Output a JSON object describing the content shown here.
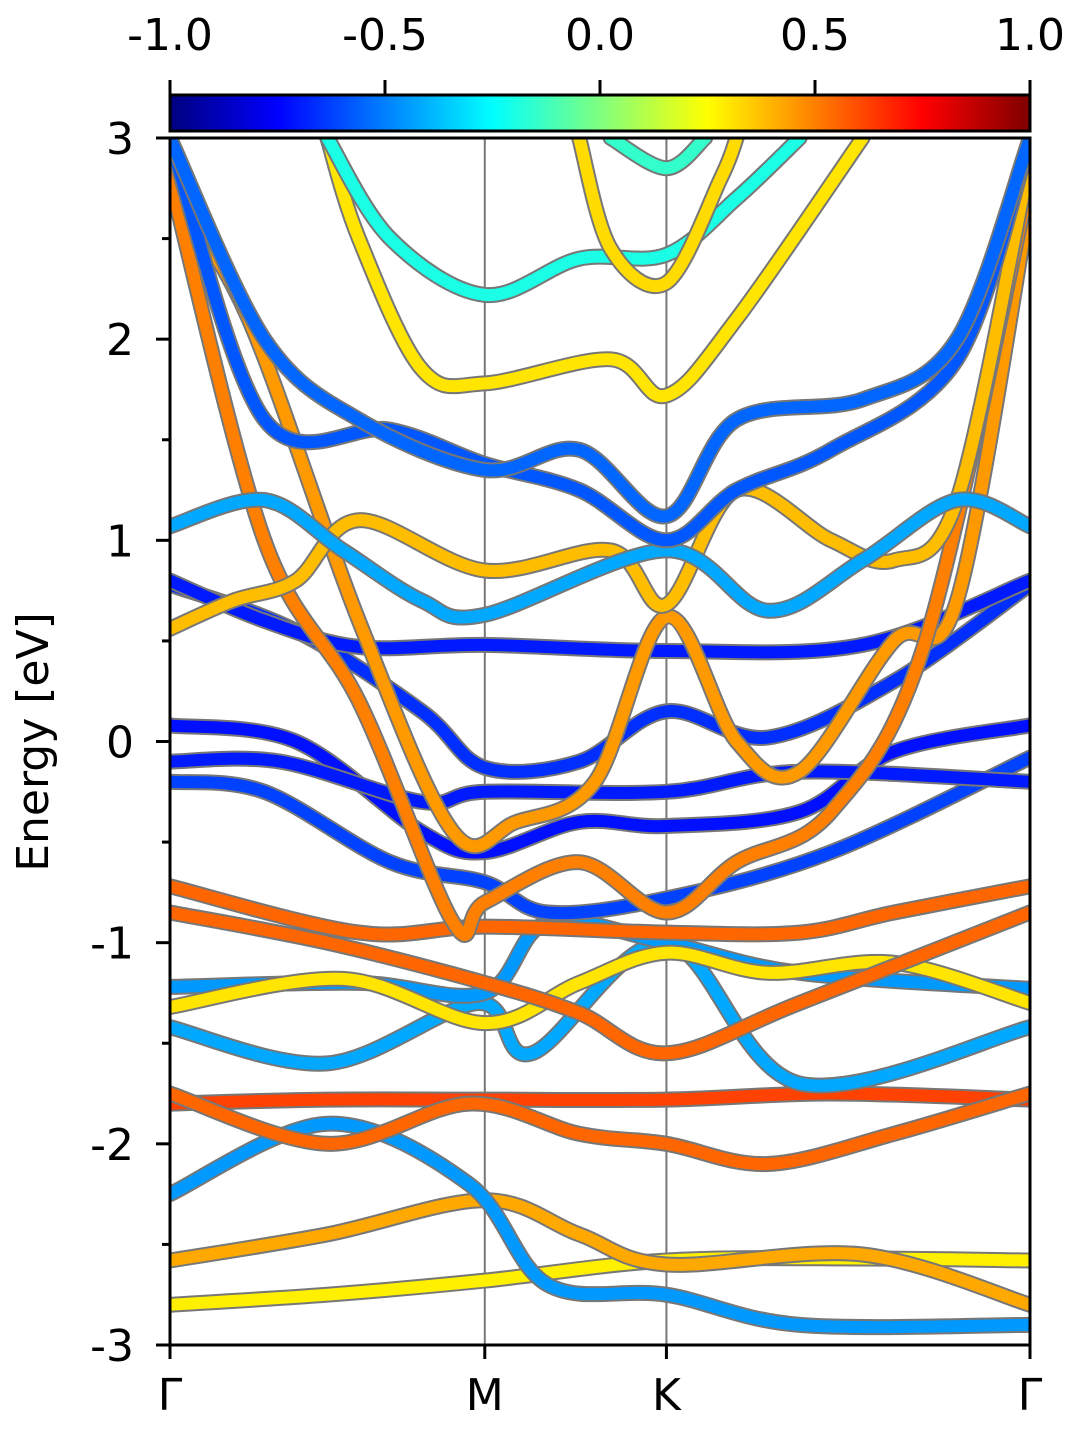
{
  "chart_data": {
    "type": "line",
    "title": "",
    "xlabel": "",
    "ylabel": "Energy [eV]",
    "ylim": [
      -3,
      3
    ],
    "y_ticks": [
      {
        "value": 3,
        "label": "3"
      },
      {
        "value": 2,
        "label": "2"
      },
      {
        "value": 1,
        "label": "1"
      },
      {
        "value": 0,
        "label": "0"
      },
      {
        "value": -1,
        "label": "-1"
      },
      {
        "value": -2,
        "label": "-2"
      },
      {
        "value": -3,
        "label": "-3"
      }
    ],
    "y_minor_ticks": [
      2.5,
      1.5,
      0.5,
      -0.5,
      -1.5,
      -2.5
    ],
    "x_kpoints": [
      {
        "label": "Γ",
        "pos": 0
      },
      {
        "label": "M",
        "pos": 1.0
      },
      {
        "label": "K",
        "pos": 1.577
      },
      {
        "label": "Γ",
        "pos": 2.732
      }
    ],
    "grid": false,
    "vertical_lines_at_kpoints": true,
    "colorbar": {
      "label": "",
      "range": [
        -1.0,
        1.0
      ],
      "colormap": "jet",
      "ticks": [
        {
          "value": -1.0,
          "label": "-1.0"
        },
        {
          "value": -0.5,
          "label": "-0.5"
        },
        {
          "value": 0.0,
          "label": "0.0"
        },
        {
          "value": 0.5,
          "label": "0.5"
        },
        {
          "value": 1.0,
          "label": "1.0"
        }
      ],
      "placement": "top"
    },
    "series": [
      {
        "color_value": 0.28,
        "x": [
          0,
          0.5,
          1.0,
          1.577,
          2.2,
          2.732
        ],
        "y": [
          -2.8,
          -2.75,
          -2.68,
          -2.58,
          -2.57,
          -2.58
        ]
      },
      {
        "color_value": 0.42,
        "x": [
          0,
          0.5,
          1.0,
          1.3,
          1.577,
          2.2,
          2.732
        ],
        "y": [
          -2.58,
          -2.45,
          -2.28,
          -2.45,
          -2.6,
          -2.55,
          -2.8
        ]
      },
      {
        "color_value": -0.45,
        "x": [
          0,
          0.5,
          0.95,
          1.2,
          1.577,
          2.0,
          2.732
        ],
        "y": [
          -2.25,
          -1.9,
          -2.2,
          -2.7,
          -2.75,
          -2.9,
          -2.9
        ]
      },
      {
        "color_value": 0.62,
        "x": [
          0,
          0.5,
          1.0,
          1.577,
          2.1,
          2.732
        ],
        "y": [
          -1.8,
          -1.78,
          -1.78,
          -1.78,
          -1.75,
          -1.78
        ]
      },
      {
        "color_value": 0.55,
        "x": [
          0,
          0.5,
          0.95,
          1.3,
          1.577,
          1.9,
          2.3,
          2.732
        ],
        "y": [
          -1.75,
          -2.0,
          -1.8,
          -1.95,
          -2.0,
          -2.1,
          -1.95,
          -1.75
        ]
      },
      {
        "color_value": -0.42,
        "x": [
          0,
          0.5,
          0.98,
          1.15,
          1.577,
          2.0,
          2.732
        ],
        "y": [
          -1.42,
          -1.6,
          -1.3,
          -1.55,
          -1.0,
          -1.7,
          -1.42
        ]
      },
      {
        "color_value": -0.45,
        "x": [
          0,
          0.6,
          1.0,
          1.2,
          1.577,
          2.0,
          2.732
        ],
        "y": [
          -1.22,
          -1.2,
          -1.25,
          -0.9,
          -1.0,
          -1.15,
          -1.23
        ]
      },
      {
        "color_value": 0.3,
        "x": [
          0,
          0.55,
          1.0,
          1.3,
          1.577,
          1.9,
          2.3,
          2.732
        ],
        "y": [
          -1.32,
          -1.18,
          -1.4,
          -1.2,
          -1.05,
          -1.15,
          -1.1,
          -1.3
        ]
      },
      {
        "color_value": 0.55,
        "x": [
          0,
          0.5,
          1.0,
          1.3,
          1.577,
          2.0,
          2.732
        ],
        "y": [
          -0.85,
          -1.0,
          -1.2,
          -1.35,
          -1.55,
          -1.3,
          -0.85
        ]
      },
      {
        "color_value": 0.55,
        "x": [
          0,
          0.6,
          1.0,
          1.577,
          2.0,
          2.3,
          2.732
        ],
        "y": [
          -0.72,
          -0.95,
          -0.92,
          -0.95,
          -0.95,
          -0.85,
          -0.72
        ]
      },
      {
        "color_value": -0.62,
        "x": [
          0,
          0.3,
          0.7,
          1.0,
          1.2,
          1.577,
          2.1,
          2.732
        ],
        "y": [
          -0.2,
          -0.25,
          -0.6,
          -0.7,
          -0.85,
          -0.78,
          -0.55,
          -0.08
        ]
      },
      {
        "color_value": -0.72,
        "x": [
          0,
          0.4,
          0.8,
          1.0,
          1.3,
          1.577,
          2.0,
          2.3,
          2.732
        ],
        "y": [
          0.08,
          0.0,
          -0.45,
          -0.55,
          -0.4,
          -0.42,
          -0.35,
          -0.05,
          0.08
        ]
      },
      {
        "color_value": -0.7,
        "x": [
          0,
          0.35,
          0.8,
          1.0,
          1.577,
          2.0,
          2.732
        ],
        "y": [
          -0.1,
          -0.1,
          -0.3,
          -0.25,
          -0.25,
          -0.15,
          -0.2
        ]
      },
      {
        "color_value": -0.66,
        "x": [
          0,
          0.4,
          0.8,
          1.0,
          1.3,
          1.577,
          1.9,
          2.3,
          2.732
        ],
        "y": [
          0.78,
          0.55,
          0.15,
          -0.13,
          -0.1,
          0.15,
          0.02,
          0.3,
          0.78
        ]
      },
      {
        "color_value": -0.7,
        "x": [
          0,
          0.3,
          0.6,
          1.0,
          1.577,
          2.2,
          2.732
        ],
        "y": [
          0.8,
          0.6,
          0.47,
          0.48,
          0.45,
          0.48,
          0.8
        ]
      },
      {
        "color_value": 0.45,
        "x": [
          0,
          0.25,
          0.6,
          0.9,
          1.1,
          1.35,
          1.577,
          1.8,
          2.0,
          2.3,
          2.5,
          2.732
        ],
        "y": [
          2.75,
          2.1,
          0.6,
          -0.45,
          -0.4,
          -0.2,
          0.62,
          0.0,
          -0.15,
          0.5,
          0.7,
          2.7
        ]
      },
      {
        "color_value": 0.5,
        "x": [
          0,
          0.3,
          0.6,
          0.9,
          1.0,
          1.3,
          1.577,
          1.8,
          2.1,
          2.4,
          2.732
        ],
        "y": [
          2.8,
          1.0,
          0.2,
          -0.9,
          -0.8,
          -0.6,
          -0.85,
          -0.6,
          -0.35,
          0.5,
          2.8
        ]
      },
      {
        "color_value": 0.38,
        "x": [
          0,
          0.2,
          0.4,
          0.6,
          1.0,
          1.4,
          1.577,
          1.8,
          2.1,
          2.3,
          2.5,
          2.732
        ],
        "y": [
          0.56,
          0.7,
          0.8,
          1.1,
          0.85,
          0.95,
          0.68,
          1.25,
          1.0,
          0.9,
          1.2,
          2.9
        ]
      },
      {
        "color_value": -0.42,
        "x": [
          0,
          0.3,
          0.55,
          0.8,
          1.0,
          1.577,
          1.9,
          2.2,
          2.5,
          2.732
        ],
        "y": [
          1.07,
          1.2,
          0.95,
          0.7,
          0.63,
          0.95,
          0.65,
          0.9,
          1.2,
          1.07
        ]
      },
      {
        "color_value": -0.58,
        "x": [
          0,
          0.3,
          0.7,
          1.0,
          1.3,
          1.577,
          1.8,
          2.1,
          2.5,
          2.732
        ],
        "y": [
          3.0,
          1.6,
          1.55,
          1.38,
          1.25,
          1.0,
          1.25,
          1.45,
          1.9,
          3.0
        ]
      },
      {
        "color_value": -0.55,
        "x": [
          0,
          0.3,
          0.6,
          1.0,
          1.3,
          1.577,
          1.8,
          2.2,
          2.5,
          2.732
        ],
        "y": [
          3.0,
          2.0,
          1.6,
          1.35,
          1.45,
          1.12,
          1.6,
          1.7,
          2.0,
          3.0
        ]
      },
      {
        "color_value": 0.3,
        "x": [
          0.5,
          0.6,
          0.8,
          1.0,
          1.4,
          1.577,
          1.8,
          2.2
        ],
        "y": [
          3.0,
          2.5,
          1.85,
          1.78,
          1.9,
          1.72,
          2.1,
          3.0
        ]
      },
      {
        "color_value": -0.2,
        "x": [
          0.5,
          0.7,
          1.0,
          1.3,
          1.577,
          1.8,
          2.0
        ],
        "y": [
          3.0,
          2.5,
          2.22,
          2.4,
          2.42,
          2.7,
          3.0
        ]
      },
      {
        "color_value": 0.32,
        "x": [
          1.3,
          1.4,
          1.577,
          1.75,
          1.8
        ],
        "y": [
          3.0,
          2.45,
          2.28,
          2.8,
          3.0
        ]
      },
      {
        "color_value": -0.15,
        "x": [
          1.4,
          1.577,
          1.7
        ],
        "y": [
          3.0,
          2.85,
          3.0
        ]
      }
    ]
  }
}
